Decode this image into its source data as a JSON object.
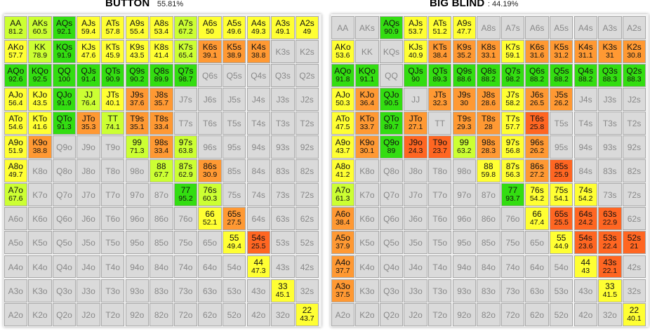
{
  "colors": {
    "yellow": "#ffff33",
    "yellow_green": "#ccff33",
    "green": "#33dd11",
    "orange": "#ff9933",
    "red_orange": "#ff6622",
    "unselected": "#dadada"
  },
  "ranks": [
    "A",
    "K",
    "Q",
    "J",
    "T",
    "9",
    "8",
    "7",
    "6",
    "5",
    "4",
    "3",
    "2"
  ],
  "panels": [
    {
      "title": "BUTTON",
      "percent": "55.81%",
      "cells": {
        "AA": "81.2",
        "AKs": "60.5",
        "AQs": "92.1",
        "AJs": "59.4",
        "ATs": "57.8",
        "A9s": "55.4",
        "A8s": "53.4",
        "A7s": "67.2",
        "A6s": "50",
        "A5s": "49.6",
        "A4s": "49.3",
        "A3s": "49.1",
        "A2s": "49",
        "AKo": "57.7",
        "KK": "78.9",
        "KQs": "91.9",
        "KJs": "47.6",
        "KTs": "45.9",
        "K9s": "43.5",
        "K8s": "41.4",
        "K7s": "65.4",
        "K6s": "39.1",
        "K5s": "38.9",
        "K4s": "38.8",
        "AQo": "92.6",
        "KQo": "92.5",
        "QQ": "100",
        "QJs": "91.4",
        "QTs": "90.9",
        "Q9s": "90.2",
        "Q8s": "89.9",
        "Q7s": "98.7",
        "AJo": "56.4",
        "KJo": "43.5",
        "QJo": "91.9",
        "JJ": "76.4",
        "JTs": "40.1",
        "J9s": "37.6",
        "J8s": "35.7",
        "ATo": "54.6",
        "KTo": "41.6",
        "QTo": "91.3",
        "JTo": "35.3",
        "TT": "74.1",
        "T9s": "35.1",
        "T8s": "33.4",
        "A9o": "51.9",
        "K9o": "38.8",
        "99": "71.3",
        "98s": "33.4",
        "97s": "63.8",
        "A8o": "49.7",
        "88": "67.7",
        "87s": "62.9",
        "86s": "30.9",
        "A7o": "67.6",
        "77": "95.2",
        "76s": "60.3",
        "66": "52.1",
        "65s": "27.5",
        "55": "49.4",
        "54s": "25.5",
        "44": "47.3",
        "33": "45.1",
        "22": "43.7"
      }
    },
    {
      "title": "BIG BLIND",
      "percent": ": 44.19%",
      "cells": {
        "AQs": "90.9",
        "AJs": "53.7",
        "ATs": "51.2",
        "A9s": "47.7",
        "AKo": "53.6",
        "KJs": "40.9",
        "KTs": "38.4",
        "K9s": "35.2",
        "K8s": "33.1",
        "K7s": "59.1",
        "K6s": "31.6",
        "K5s": "31.2",
        "K4s": "31.1",
        "K3s": "31",
        "K2s": "30.8",
        "AQo": "91.8",
        "KQo": "91.1",
        "QJs": "90",
        "QTs": "89.3",
        "Q9s": "88.6",
        "Q8s": "88.2",
        "Q7s": "98.2",
        "Q6s": "88.2",
        "Q5s": "88.2",
        "Q4s": "88.2",
        "Q3s": "88.3",
        "Q2s": "88.3",
        "AJo": "50.3",
        "KJo": "36.4",
        "QJo": "90.5",
        "JTs": "32.3",
        "J9s": "30",
        "J8s": "28.6",
        "J7s": "58.2",
        "J6s": "26.5",
        "J5s": "26.2",
        "ATo": "47.5",
        "KTo": "33.7",
        "QTo": "89.7",
        "JTo": "27.1",
        "T9s": "29.3",
        "T8s": "28",
        "T7s": "57.7",
        "T6s": "25.8",
        "A9o": "43.7",
        "K9o": "30.1",
        "Q9o": "89",
        "J9o": "24.3",
        "T9o": "23.7",
        "99": "63.2",
        "98s": "28.3",
        "97s": "56.8",
        "96s": "26.2",
        "A8o": "41.2",
        "88": "59.8",
        "87s": "56.3",
        "86s": "27.2",
        "85s": "25.9",
        "A7o": "61.3",
        "77": "93.7",
        "76s": "54.2",
        "75s": "54.1",
        "74s": "54.2",
        "A6o": "38.4",
        "66": "47.4",
        "65s": "25.5",
        "64s": "24.2",
        "63s": "22.9",
        "A5o": "37.9",
        "55": "44.9",
        "54s": "23.6",
        "53s": "22.4",
        "52s": "21",
        "A4o": "37.7",
        "44": "43",
        "43s": "22.1",
        "A3o": "37.5",
        "33": "41.5",
        "22": "40.1"
      }
    }
  ]
}
